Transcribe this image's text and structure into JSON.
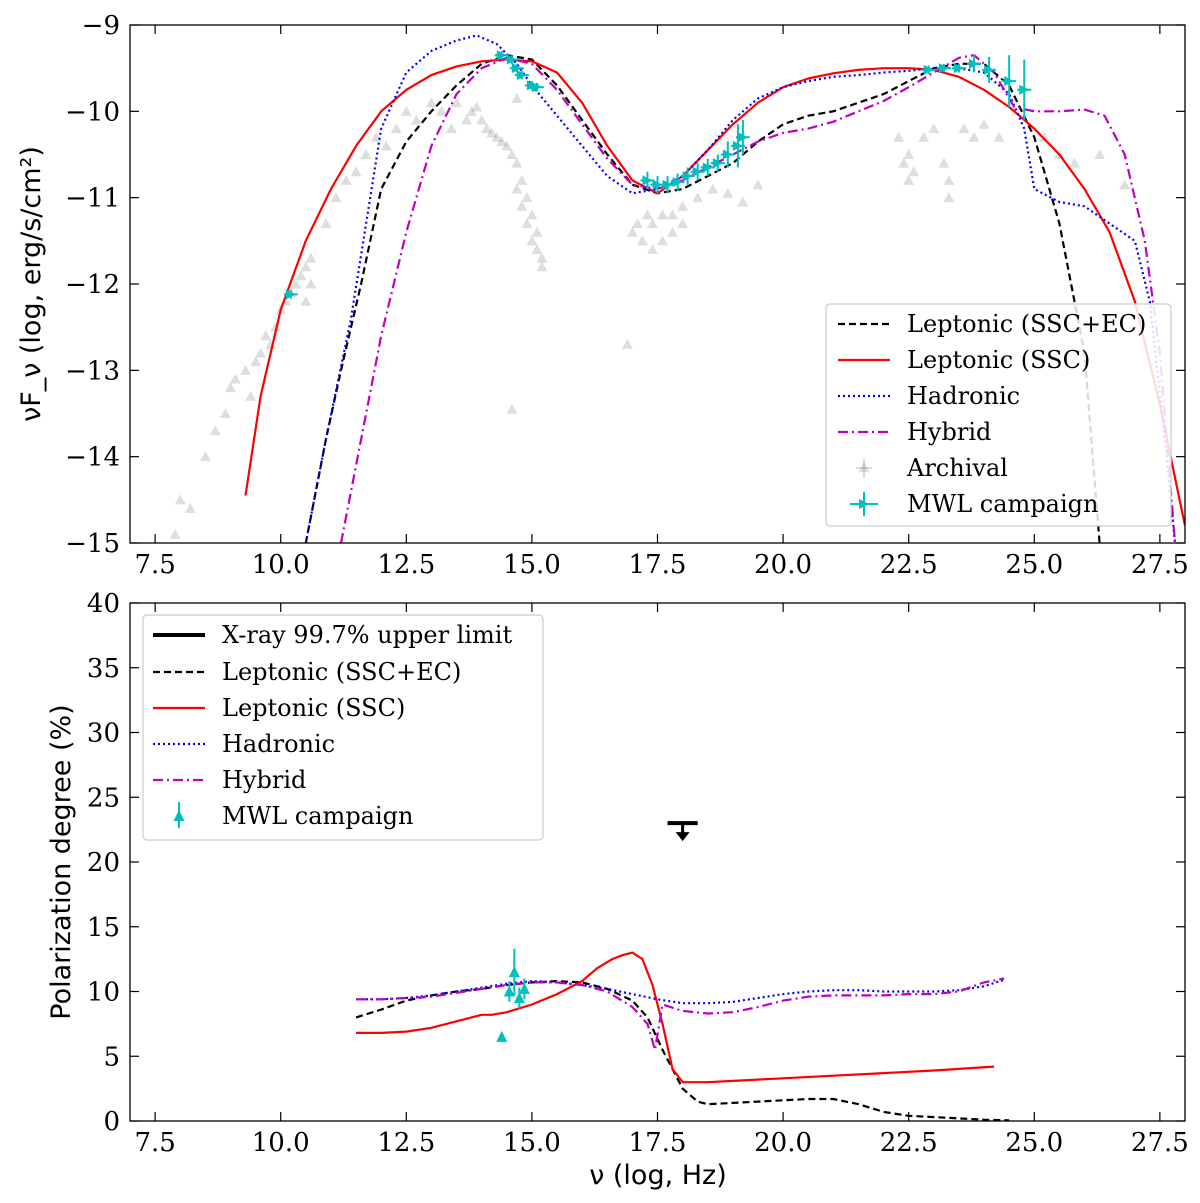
{
  "colors": {
    "ssc_ec": "#000000",
    "ssc": "#ff0000",
    "hadronic": "#0000ff",
    "hybrid": "#bf00bf",
    "mwl": "#00bfbf",
    "archival": "#000000"
  },
  "chart_data": [
    {
      "type": "line",
      "panel": "top",
      "title": "",
      "xlabel": "",
      "ylabel": "νF_ν (log, erg/s/cm²)",
      "xlim": [
        7,
        28
      ],
      "ylim": [
        -15,
        -9
      ],
      "xticks": [
        "7.5",
        "10.0",
        "12.5",
        "15.0",
        "17.5",
        "20.0",
        "22.5",
        "25.0",
        "27.5"
      ],
      "xtick_values": [
        7.5,
        10,
        12.5,
        15,
        17.5,
        20,
        22.5,
        25,
        27.5
      ],
      "yticks": [
        "−15",
        "−14",
        "−13",
        "−12",
        "−11",
        "−10",
        "−9"
      ],
      "ytick_values": [
        -15,
        -14,
        -13,
        -12,
        -11,
        -10,
        -9
      ],
      "legend_position": "lower right",
      "series": [
        {
          "key": "ssc_ec",
          "name": "Leptonic (SSC+EC)",
          "style": "dashed",
          "x": [
            10.5,
            10.9,
            11.2,
            11.6,
            12.0,
            12.5,
            13.0,
            13.5,
            14.0,
            14.5,
            15.0,
            15.5,
            16.0,
            16.5,
            17.0,
            17.5,
            18.0,
            18.5,
            19.0,
            19.5,
            20.0,
            20.5,
            21.0,
            21.5,
            22.0,
            22.5,
            23.0,
            23.5,
            24.0,
            24.5,
            25.0,
            25.5,
            26.0,
            26.3
          ],
          "y": [
            -15.0,
            -13.8,
            -13.0,
            -12.0,
            -10.9,
            -10.35,
            -10.0,
            -9.7,
            -9.45,
            -9.35,
            -9.4,
            -9.7,
            -10.1,
            -10.5,
            -10.85,
            -10.95,
            -10.9,
            -10.75,
            -10.6,
            -10.35,
            -10.15,
            -10.05,
            -10.0,
            -9.9,
            -9.8,
            -9.65,
            -9.5,
            -9.45,
            -9.45,
            -9.7,
            -10.3,
            -11.3,
            -12.8,
            -15.0
          ]
        },
        {
          "key": "ssc",
          "name": "Leptonic (SSC)",
          "style": "solid",
          "x": [
            9.3,
            9.6,
            10.0,
            10.5,
            11.0,
            11.5,
            12.0,
            12.5,
            13.0,
            13.5,
            14.0,
            14.5,
            15.0,
            15.5,
            16.0,
            16.5,
            17.0,
            17.5,
            18.0,
            18.5,
            19.0,
            19.5,
            20.0,
            20.5,
            21.0,
            21.5,
            22.0,
            22.5,
            23.0,
            23.5,
            24.0,
            24.5,
            25.0,
            25.5,
            26.0,
            26.5,
            27.0,
            27.5,
            28.0
          ],
          "y": [
            -14.45,
            -13.3,
            -12.3,
            -11.5,
            -10.9,
            -10.4,
            -10.0,
            -9.75,
            -9.58,
            -9.48,
            -9.42,
            -9.4,
            -9.42,
            -9.55,
            -9.9,
            -10.4,
            -10.8,
            -10.95,
            -10.75,
            -10.45,
            -10.15,
            -9.9,
            -9.72,
            -9.62,
            -9.56,
            -9.52,
            -9.5,
            -9.5,
            -9.52,
            -9.6,
            -9.75,
            -9.95,
            -10.2,
            -10.5,
            -10.9,
            -11.4,
            -12.2,
            -13.4,
            -14.8
          ]
        },
        {
          "key": "hadronic",
          "name": "Hadronic",
          "style": "dotted",
          "x": [
            10.5,
            10.9,
            11.4,
            11.7,
            12.0,
            12.5,
            13.0,
            13.5,
            13.9,
            14.3,
            14.7,
            15.0,
            15.5,
            16.0,
            16.5,
            17.0,
            17.5,
            18.0,
            18.5,
            19.0,
            19.5,
            20.0,
            20.5,
            21.0,
            21.5,
            22.0,
            22.5,
            23.0,
            23.5,
            24.0,
            24.5,
            24.8,
            25.0,
            25.5,
            26.0,
            26.5,
            27.0,
            27.3,
            27.6,
            27.8
          ],
          "y": [
            -15.0,
            -13.8,
            -12.4,
            -11.3,
            -10.2,
            -9.55,
            -9.3,
            -9.18,
            -9.12,
            -9.22,
            -9.45,
            -9.7,
            -10.05,
            -10.4,
            -10.75,
            -10.95,
            -10.9,
            -10.75,
            -10.45,
            -10.1,
            -9.85,
            -9.72,
            -9.65,
            -9.6,
            -9.58,
            -9.55,
            -9.53,
            -9.5,
            -9.5,
            -9.55,
            -9.8,
            -10.2,
            -10.9,
            -11.05,
            -11.1,
            -11.3,
            -11.5,
            -12.2,
            -13.8,
            -15.0
          ]
        },
        {
          "key": "hybrid",
          "name": "Hybrid",
          "style": "dashdot",
          "x": [
            11.2,
            11.6,
            12.0,
            12.5,
            13.0,
            13.5,
            14.0,
            14.5,
            15.0,
            15.5,
            16.0,
            16.5,
            17.0,
            17.5,
            18.0,
            18.5,
            19.0,
            19.5,
            20.0,
            20.5,
            21.0,
            21.5,
            22.0,
            22.5,
            23.0,
            23.5,
            23.8,
            24.2,
            24.6,
            25.0,
            25.5,
            26.0,
            26.4,
            26.8,
            27.2,
            27.5,
            27.8
          ],
          "y": [
            -15.0,
            -13.8,
            -12.6,
            -11.4,
            -10.4,
            -9.8,
            -9.5,
            -9.38,
            -9.45,
            -9.75,
            -10.15,
            -10.55,
            -10.85,
            -10.9,
            -10.8,
            -10.65,
            -10.5,
            -10.35,
            -10.25,
            -10.2,
            -10.12,
            -10.0,
            -9.88,
            -9.72,
            -9.55,
            -9.38,
            -9.35,
            -9.55,
            -9.95,
            -10.0,
            -10.0,
            -9.98,
            -10.05,
            -10.5,
            -11.5,
            -12.8,
            -15.0
          ]
        }
      ],
      "mwl_points": {
        "name": "MWL campaign",
        "x": [
          10.2,
          14.4,
          14.6,
          14.7,
          14.8,
          15.0,
          15.1,
          17.3,
          17.5,
          17.7,
          17.9,
          18.1,
          18.3,
          18.5,
          18.7,
          18.9,
          19.1,
          19.2,
          22.9,
          23.2,
          23.5,
          23.8,
          24.1,
          24.5,
          24.8
        ],
        "y": [
          -12.12,
          -9.35,
          -9.4,
          -9.5,
          -9.58,
          -9.7,
          -9.72,
          -10.8,
          -10.85,
          -10.85,
          -10.82,
          -10.75,
          -10.7,
          -10.65,
          -10.6,
          -10.5,
          -10.4,
          -10.3,
          -9.52,
          -9.5,
          -9.5,
          -9.45,
          -9.52,
          -9.65,
          -9.75
        ],
        "yerr": [
          0.05,
          0.05,
          0.05,
          0.05,
          0.05,
          0.05,
          0.05,
          0.1,
          0.1,
          0.1,
          0.1,
          0.1,
          0.1,
          0.1,
          0.1,
          0.15,
          0.25,
          0.2,
          0.05,
          0.05,
          0.05,
          0.1,
          0.15,
          0.3,
          0.35
        ]
      },
      "archival_points": {
        "name": "Archival",
        "x": [
          7.9,
          8.0,
          8.2,
          8.5,
          8.7,
          8.9,
          9.0,
          9.1,
          9.3,
          9.4,
          9.5,
          9.6,
          9.7,
          9.8,
          9.9,
          10.0,
          10.1,
          10.2,
          10.3,
          10.4,
          10.5,
          10.5,
          10.6,
          10.6,
          10.9,
          11.1,
          11.3,
          11.5,
          11.7,
          11.9,
          12.1,
          12.3,
          12.5,
          12.7,
          13.0,
          13.2,
          13.4,
          13.5,
          13.7,
          13.8,
          13.9,
          14.0,
          14.1,
          14.2,
          14.3,
          14.4,
          14.5,
          14.6,
          14.7,
          14.7,
          14.8,
          14.8,
          14.9,
          14.9,
          15.0,
          15.0,
          15.1,
          15.1,
          15.2,
          15.2,
          16.9,
          17.0,
          17.1,
          17.2,
          17.3,
          17.4,
          17.4,
          17.6,
          17.6,
          17.8,
          17.8,
          18.0,
          18.0,
          18.3,
          18.6,
          18.9,
          19.2,
          19.5,
          22.3,
          22.4,
          22.5,
          22.5,
          22.6,
          22.8,
          23.0,
          23.2,
          23.3,
          23.3,
          23.6,
          23.8,
          24.0,
          24.3,
          25.2,
          25.5,
          25.8,
          26.3,
          26.8,
          14.6,
          14.7
        ],
        "y": [
          -14.9,
          -14.5,
          -14.6,
          -14.0,
          -13.7,
          -13.5,
          -13.2,
          -13.1,
          -13.0,
          -13.3,
          -12.9,
          -12.8,
          -12.6,
          -12.7,
          -12.5,
          -12.3,
          -12.2,
          -12.1,
          -12.0,
          -11.9,
          -11.8,
          -12.2,
          -11.7,
          -12.0,
          -11.3,
          -11.0,
          -10.8,
          -10.7,
          -10.5,
          -10.3,
          -10.4,
          -10.2,
          -10.0,
          -10.1,
          -9.9,
          -10.0,
          -10.2,
          -9.9,
          -10.1,
          -10.0,
          -9.95,
          -10.1,
          -10.2,
          -10.25,
          -10.3,
          -10.35,
          -10.4,
          -10.5,
          -10.6,
          -10.9,
          -10.8,
          -11.1,
          -11.0,
          -11.3,
          -11.2,
          -11.5,
          -11.6,
          -11.4,
          -11.7,
          -11.8,
          -12.7,
          -11.4,
          -11.3,
          -11.5,
          -11.2,
          -11.3,
          -11.6,
          -11.2,
          -11.5,
          -11.2,
          -11.4,
          -11.1,
          -11.3,
          -11.0,
          -10.9,
          -10.95,
          -11.05,
          -10.85,
          -10.3,
          -10.6,
          -10.5,
          -10.8,
          -10.7,
          -10.3,
          -10.2,
          -10.6,
          -10.8,
          -11.0,
          -10.2,
          -10.3,
          -10.15,
          -10.3,
          -10.3,
          -10.5,
          -10.6,
          -10.5,
          -10.85,
          -13.45,
          -9.85
        ]
      }
    },
    {
      "type": "line",
      "panel": "bottom",
      "title": "",
      "xlabel": "ν (log, Hz)",
      "ylabel": "Polarization degree (%)",
      "xlim": [
        7,
        28
      ],
      "ylim": [
        0,
        40
      ],
      "xticks": [
        "7.5",
        "10.0",
        "12.5",
        "15.0",
        "17.5",
        "20.0",
        "22.5",
        "25.0",
        "27.5"
      ],
      "xtick_values": [
        7.5,
        10,
        12.5,
        15,
        17.5,
        20,
        22.5,
        25,
        27.5
      ],
      "yticks": [
        "0",
        "5",
        "10",
        "15",
        "20",
        "25",
        "30",
        "35",
        "40"
      ],
      "ytick_values": [
        0,
        5,
        10,
        15,
        20,
        25,
        30,
        35,
        40
      ],
      "legend_position": "upper left",
      "upper_limit": {
        "name": "X-ray 99.7% upper limit",
        "x": 18.0,
        "y": 23.0,
        "x_halfwidth": 0.3
      },
      "series": [
        {
          "key": "ssc_ec",
          "name": "Leptonic (SSC+EC)",
          "style": "dashed",
          "x": [
            11.5,
            12.0,
            12.5,
            13.0,
            13.5,
            14.0,
            14.5,
            15.0,
            15.5,
            16.0,
            16.5,
            17.0,
            17.3,
            17.6,
            17.8,
            18.0,
            18.3,
            18.5,
            19.0,
            19.5,
            20.0,
            20.5,
            21.0,
            21.5,
            22.0,
            22.5,
            23.0,
            23.5,
            24.0,
            24.5
          ],
          "y": [
            8.0,
            8.6,
            9.3,
            9.7,
            10.0,
            10.2,
            10.5,
            10.7,
            10.8,
            10.7,
            10.2,
            9.3,
            8.0,
            5.5,
            4.0,
            2.5,
            1.5,
            1.3,
            1.4,
            1.5,
            1.6,
            1.7,
            1.7,
            1.3,
            0.7,
            0.4,
            0.3,
            0.2,
            0.1,
            0.05
          ]
        },
        {
          "key": "ssc",
          "name": "Leptonic (SSC)",
          "style": "solid",
          "x": [
            11.5,
            12.0,
            12.5,
            13.0,
            13.5,
            14.0,
            14.2,
            14.5,
            15.0,
            15.5,
            16.0,
            16.3,
            16.6,
            16.8,
            17.0,
            17.2,
            17.4,
            17.6,
            17.8,
            18.0,
            18.5,
            19.0,
            20.0,
            21.0,
            22.0,
            23.0,
            24.2
          ],
          "y": [
            6.8,
            6.8,
            6.9,
            7.2,
            7.7,
            8.2,
            8.2,
            8.4,
            9.0,
            9.8,
            10.8,
            11.8,
            12.5,
            12.8,
            13.0,
            12.5,
            10.5,
            7.5,
            4.0,
            3.0,
            3.0,
            3.1,
            3.3,
            3.5,
            3.7,
            3.9,
            4.2
          ]
        },
        {
          "key": "hadronic",
          "name": "Hadronic",
          "style": "dotted",
          "x": [
            11.5,
            12.0,
            12.5,
            13.0,
            13.5,
            14.0,
            14.5,
            15.0,
            15.5,
            16.0,
            16.5,
            17.0,
            17.5,
            18.0,
            18.5,
            19.0,
            19.5,
            20.0,
            20.5,
            21.0,
            21.5,
            22.0,
            22.5,
            23.0,
            23.5,
            24.0,
            24.4
          ],
          "y": [
            9.4,
            9.4,
            9.5,
            9.7,
            10.0,
            10.3,
            10.6,
            10.8,
            10.7,
            10.5,
            10.2,
            9.8,
            9.4,
            9.1,
            9.1,
            9.2,
            9.5,
            9.8,
            10.0,
            10.1,
            10.1,
            10.0,
            10.0,
            10.0,
            10.1,
            10.4,
            10.9
          ]
        },
        {
          "key": "hybrid",
          "name": "Hybrid",
          "style": "dashdot",
          "x": [
            11.5,
            12.0,
            12.5,
            13.0,
            13.5,
            14.0,
            14.5,
            15.0,
            15.5,
            16.0,
            16.5,
            17.0,
            17.3,
            17.45,
            17.6,
            18.0,
            18.5,
            19.0,
            19.5,
            20.0,
            20.5,
            21.0,
            21.5,
            22.0,
            22.5,
            23.0,
            23.5,
            24.0,
            24.4
          ],
          "y": [
            9.4,
            9.4,
            9.5,
            9.6,
            9.9,
            10.2,
            10.5,
            10.7,
            10.7,
            10.5,
            10.0,
            8.8,
            7.5,
            5.5,
            9.0,
            8.5,
            8.3,
            8.4,
            8.8,
            9.3,
            9.6,
            9.7,
            9.7,
            9.7,
            9.8,
            9.8,
            10.0,
            10.7,
            11.0
          ]
        },
        {
          "key": "mwl",
          "name": "MWL campaign",
          "style": "marker",
          "x": [
            14.4,
            14.55,
            14.65,
            14.75,
            14.85
          ],
          "y": [
            6.5,
            10.0,
            11.5,
            9.5,
            10.2
          ],
          "yerr": [
            0.2,
            0.8,
            1.8,
            0.8,
            0.8
          ]
        }
      ]
    }
  ]
}
